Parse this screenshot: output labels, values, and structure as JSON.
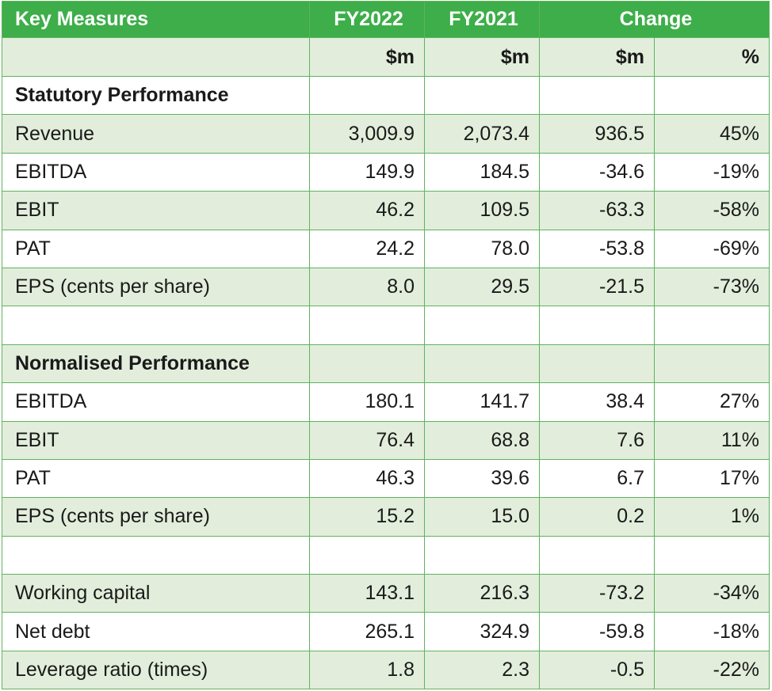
{
  "header": {
    "title": "Key Measures",
    "col_fy2022": "FY2022",
    "col_fy2021": "FY2021",
    "col_change": "Change"
  },
  "units": [
    "",
    "$m",
    "$m",
    "$m",
    "%"
  ],
  "rows": [
    {
      "label": "Statutory Performance",
      "type": "section",
      "shade": false,
      "values": [
        "",
        "",
        "",
        ""
      ]
    },
    {
      "label": "Revenue",
      "type": "data",
      "shade": true,
      "values": [
        "3,009.9",
        "2,073.4",
        "936.5",
        "45%"
      ]
    },
    {
      "label": "EBITDA",
      "type": "data",
      "shade": false,
      "values": [
        "149.9",
        "184.5",
        "-34.6",
        "-19%"
      ]
    },
    {
      "label": "EBIT",
      "type": "data",
      "shade": true,
      "values": [
        "46.2",
        "109.5",
        "-63.3",
        "-58%"
      ]
    },
    {
      "label": "PAT",
      "type": "data",
      "shade": false,
      "values": [
        "24.2",
        "78.0",
        "-53.8",
        "-69%"
      ]
    },
    {
      "label": "EPS (cents per share)",
      "type": "data",
      "shade": true,
      "values": [
        "8.0",
        "29.5",
        "-21.5",
        "-73%"
      ]
    },
    {
      "label": "",
      "type": "blank",
      "shade": false,
      "values": [
        "",
        "",
        "",
        ""
      ]
    },
    {
      "label": "Normalised Performance",
      "type": "section",
      "shade": true,
      "values": [
        "",
        "",
        "",
        ""
      ]
    },
    {
      "label": "EBITDA",
      "type": "data",
      "shade": false,
      "values": [
        "180.1",
        "141.7",
        "38.4",
        "27%"
      ]
    },
    {
      "label": "EBIT",
      "type": "data",
      "shade": true,
      "values": [
        "76.4",
        "68.8",
        "7.6",
        "11%"
      ]
    },
    {
      "label": "PAT",
      "type": "data",
      "shade": false,
      "values": [
        "46.3",
        "39.6",
        "6.7",
        "17%"
      ]
    },
    {
      "label": "EPS (cents per share)",
      "type": "data",
      "shade": true,
      "values": [
        "15.2",
        "15.0",
        "0.2",
        "1%"
      ]
    },
    {
      "label": "",
      "type": "blank",
      "shade": false,
      "values": [
        "",
        "",
        "",
        ""
      ]
    },
    {
      "label": "Working capital",
      "type": "data",
      "shade": true,
      "values": [
        "143.1",
        "216.3",
        "-73.2",
        "-34%"
      ]
    },
    {
      "label": "Net debt",
      "type": "data",
      "shade": false,
      "values": [
        "265.1",
        "324.9",
        "-59.8",
        "-18%"
      ]
    },
    {
      "label": "Leverage ratio (times)",
      "type": "data",
      "shade": true,
      "values": [
        "1.8",
        "2.3",
        "-0.5",
        "-22%"
      ]
    }
  ],
  "colors": {
    "header_bg": "#3dae49",
    "shade_bg": "#e2eedb",
    "border": "#5fb35f"
  }
}
